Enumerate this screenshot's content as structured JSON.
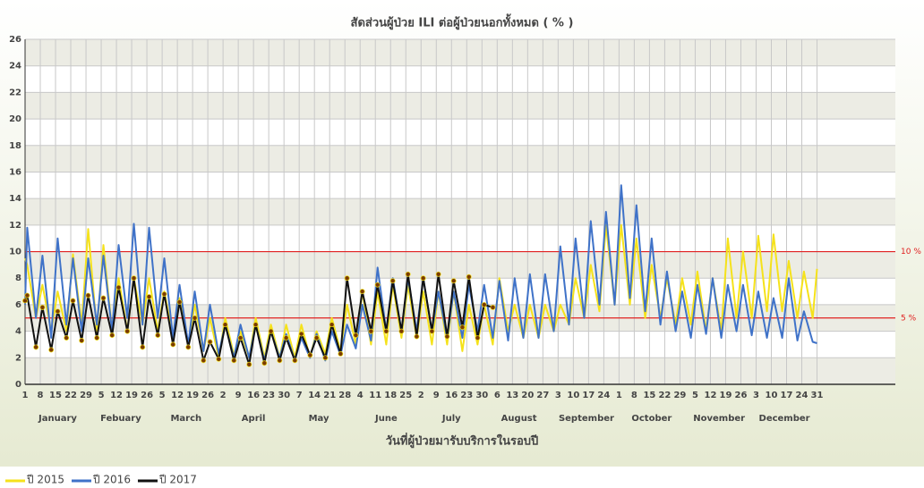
{
  "chart_data": {
    "type": "line",
    "title": "สัดส่วนผู้ป่วย ILI ต่อผู้ป่วยนอกทั้งหมด ( % )",
    "x_label": "วันที่ผู้ป่วยมารับบริการในรอบปี",
    "xlim": [
      1,
      401
    ],
    "ylim": [
      0,
      26
    ],
    "yticks": [
      0,
      2,
      4,
      6,
      8,
      10,
      12,
      14,
      16,
      18,
      20,
      22,
      24,
      26
    ],
    "xticks": [
      1,
      {
        "value": 8,
        "label": "8"
      },
      {
        "value": 15,
        "label": "15"
      },
      {
        "value": 22,
        "label": "22"
      },
      {
        "value": 29,
        "label": "29"
      },
      {
        "value": 36,
        "label": "5"
      },
      {
        "value": 43,
        "label": "12"
      },
      {
        "value": 50,
        "label": "19"
      },
      {
        "value": 57,
        "label": "26"
      },
      {
        "value": 64,
        "label": "5"
      },
      {
        "value": 71,
        "label": "12"
      },
      {
        "value": 78,
        "label": "19"
      },
      {
        "value": 85,
        "label": "26"
      },
      {
        "value": 92,
        "label": "2"
      },
      {
        "value": 99,
        "label": "9"
      },
      {
        "value": 106,
        "label": "16"
      },
      {
        "value": 113,
        "label": "23"
      },
      {
        "value": 120,
        "label": "30"
      },
      {
        "value": 127,
        "label": "7"
      },
      {
        "value": 134,
        "label": "14"
      },
      {
        "value": 141,
        "label": "21"
      },
      {
        "value": 148,
        "label": "28"
      },
      {
        "value": 155,
        "label": "4"
      },
      {
        "value": 162,
        "label": "11"
      },
      {
        "value": 169,
        "label": "18"
      },
      {
        "value": 176,
        "label": "25"
      },
      {
        "value": 183,
        "label": "2"
      },
      {
        "value": 190,
        "label": "9"
      },
      {
        "value": 197,
        "label": "16"
      },
      {
        "value": 204,
        "label": "23"
      },
      {
        "value": 211,
        "label": "30"
      },
      {
        "value": 218,
        "label": "6"
      },
      {
        "value": 225,
        "label": "13"
      },
      {
        "value": 232,
        "label": "20"
      },
      {
        "value": 239,
        "label": "27"
      },
      {
        "value": 246,
        "label": "3"
      },
      {
        "value": 253,
        "label": "10"
      },
      {
        "value": 260,
        "label": "17"
      },
      {
        "value": 267,
        "label": "24"
      },
      {
        "value": 274,
        "label": "1"
      },
      {
        "value": 281,
        "label": "8"
      },
      {
        "value": 288,
        "label": "15"
      },
      {
        "value": 295,
        "label": "22"
      },
      {
        "value": 302,
        "label": "29"
      },
      {
        "value": 309,
        "label": "5"
      },
      {
        "value": 316,
        "label": "12"
      },
      {
        "value": 323,
        "label": "19"
      },
      {
        "value": 330,
        "label": "26"
      },
      {
        "value": 337,
        "label": "3"
      },
      {
        "value": 344,
        "label": "10"
      },
      {
        "value": 351,
        "label": "17"
      },
      {
        "value": 358,
        "label": "24"
      },
      {
        "value": 365,
        "label": "31"
      }
    ],
    "months": [
      {
        "value": 16,
        "label": "January"
      },
      {
        "value": 45,
        "label": "Febuary"
      },
      {
        "value": 75,
        "label": "March"
      },
      {
        "value": 106,
        "label": "April"
      },
      {
        "value": 136,
        "label": "May"
      },
      {
        "value": 167,
        "label": "June"
      },
      {
        "value": 197,
        "label": "July"
      },
      {
        "value": 228,
        "label": "August"
      },
      {
        "value": 259,
        "label": "September"
      },
      {
        "value": 289,
        "label": "October"
      },
      {
        "value": 320,
        "label": "November"
      },
      {
        "value": 350,
        "label": "December"
      }
    ],
    "thresholds": [
      {
        "value": 10,
        "label": "10 %"
      },
      {
        "value": 5,
        "label": "5 %"
      }
    ],
    "threshold_color": "#e02020",
    "grid": true,
    "series": [
      {
        "name": "ปี 2015",
        "color": "#f5e21b",
        "markers": false,
        "x": [
          1,
          2,
          6,
          9,
          13,
          16,
          20,
          23,
          27,
          30,
          34,
          37,
          41,
          44,
          48,
          51,
          55,
          58,
          62,
          65,
          69,
          72,
          76,
          79,
          83,
          86,
          90,
          93,
          97,
          100,
          104,
          107,
          111,
          114,
          118,
          121,
          125,
          128,
          132,
          135,
          139,
          142,
          146,
          149,
          153,
          156,
          160,
          163,
          167,
          170,
          174,
          177,
          181,
          184,
          188,
          191,
          195,
          198,
          202,
          205,
          209,
          212,
          216,
          219,
          223,
          226,
          230,
          233,
          237,
          240,
          244,
          247,
          251,
          254,
          258,
          261,
          265,
          268,
          272,
          275,
          279,
          282,
          286,
          289,
          293,
          296,
          300,
          303,
          307,
          310,
          314,
          317,
          321,
          324,
          328,
          331,
          335,
          338,
          342,
          345,
          349,
          352,
          356,
          359,
          363,
          365
        ],
        "values": [
          9.5,
          9,
          5,
          7.5,
          4,
          7,
          4,
          9.8,
          4.5,
          11.7,
          4,
          10.5,
          4,
          8,
          4,
          8,
          4.5,
          8,
          4,
          7,
          3.5,
          6.5,
          3,
          6,
          2.5,
          5,
          2,
          5,
          2.2,
          4,
          2,
          5,
          2,
          4.5,
          2,
          4.5,
          2,
          4.5,
          2,
          4,
          2.3,
          5,
          2.5,
          6,
          3,
          7,
          3,
          7,
          3,
          7.5,
          3.5,
          7.5,
          3.5,
          7,
          3,
          7,
          3,
          7,
          2.5,
          6,
          3,
          6,
          3,
          8,
          4,
          6,
          3.5,
          6,
          3.5,
          6,
          4,
          6,
          4.5,
          8,
          5,
          9,
          5.5,
          12,
          6,
          12,
          6,
          11,
          5,
          9,
          5,
          8,
          4.5,
          8,
          4.5,
          8.5,
          4,
          8,
          4,
          11,
          5,
          10,
          5,
          11.2,
          5.5,
          11.3,
          5.5,
          9.3,
          5,
          8.5,
          5,
          8.7
        ]
      },
      {
        "name": "ปี 2016",
        "color": "#3f72c8",
        "markers": false,
        "x": [
          1,
          2,
          6,
          9,
          13,
          16,
          20,
          23,
          27,
          30,
          34,
          37,
          41,
          44,
          48,
          51,
          55,
          58,
          62,
          65,
          69,
          72,
          76,
          79,
          83,
          86,
          90,
          93,
          97,
          100,
          104,
          107,
          111,
          114,
          118,
          121,
          125,
          128,
          132,
          135,
          139,
          142,
          146,
          149,
          153,
          156,
          160,
          163,
          167,
          170,
          174,
          177,
          181,
          184,
          188,
          191,
          195,
          198,
          202,
          205,
          209,
          212,
          216,
          219,
          223,
          226,
          230,
          233,
          237,
          240,
          244,
          247,
          251,
          254,
          258,
          261,
          265,
          268,
          272,
          275,
          279,
          282,
          286,
          289,
          293,
          296,
          300,
          303,
          307,
          310,
          314,
          317,
          321,
          324,
          328,
          331,
          335,
          338,
          342,
          345,
          349,
          352,
          356,
          359,
          363,
          365
        ],
        "values": [
          6,
          11.8,
          5,
          9.7,
          3.5,
          11,
          4.5,
          9.5,
          4,
          9.5,
          4.5,
          9.7,
          4,
          10.5,
          5,
          12.1,
          4.5,
          11.8,
          5,
          9.5,
          3.5,
          7.5,
          3,
          7,
          2.5,
          6,
          2.3,
          4.5,
          2,
          4.5,
          2,
          4.5,
          1.8,
          4,
          2,
          3.8,
          1.8,
          3.5,
          2,
          3.8,
          1.8,
          4,
          2.2,
          4.5,
          2.7,
          6,
          3.3,
          8.8,
          4,
          8,
          4,
          8,
          4,
          8,
          4,
          7,
          3.5,
          7,
          3.5,
          7.5,
          4,
          7.5,
          3.5,
          7.8,
          3.3,
          8,
          3.5,
          8.3,
          3.5,
          8.3,
          4,
          10.4,
          4.5,
          11,
          5,
          12.3,
          6,
          13,
          6,
          15,
          6.5,
          13.5,
          5.5,
          11,
          4.5,
          8.5,
          4,
          7,
          3.5,
          7.5,
          3.8,
          8,
          3.5,
          7.5,
          4,
          7.5,
          3.7,
          7,
          3.5,
          6.5,
          3.5,
          8,
          3.3,
          5.5,
          3.2,
          3.1
        ]
      },
      {
        "name": "ปี 2017",
        "color": "#111111",
        "markers": true,
        "marker_color": "#7a3b00",
        "x": [
          1,
          2,
          6,
          9,
          13,
          16,
          20,
          23,
          27,
          30,
          34,
          37,
          41,
          44,
          48,
          51,
          55,
          58,
          62,
          65,
          69,
          72,
          76,
          79,
          83,
          86,
          90,
          93,
          97,
          100,
          104,
          107,
          111,
          114,
          118,
          121,
          125,
          128,
          132,
          135,
          139,
          142,
          146,
          149,
          153,
          156,
          160,
          163,
          167,
          170,
          174,
          177,
          181,
          184,
          188,
          191,
          195,
          198,
          202,
          205,
          209,
          212,
          216
        ],
        "values": [
          6.3,
          6.7,
          2.8,
          5.8,
          2.6,
          5.5,
          3.5,
          6.3,
          3.3,
          6.7,
          3.5,
          6.5,
          3.7,
          7.3,
          4,
          8,
          2.8,
          6.6,
          3.7,
          6.8,
          3,
          6.2,
          2.8,
          5,
          1.8,
          3.2,
          1.9,
          4.5,
          1.8,
          3.5,
          1.5,
          4.5,
          1.6,
          4,
          1.8,
          3.5,
          1.8,
          3.8,
          2.2,
          3.5,
          2,
          4.5,
          2.3,
          8,
          3.7,
          7,
          4,
          7.5,
          4,
          7.8,
          4,
          8.3,
          3.6,
          8,
          4,
          8.3,
          3.6,
          7.8,
          4.3,
          8.1,
          3.5,
          6,
          5.8
        ]
      }
    ]
  }
}
